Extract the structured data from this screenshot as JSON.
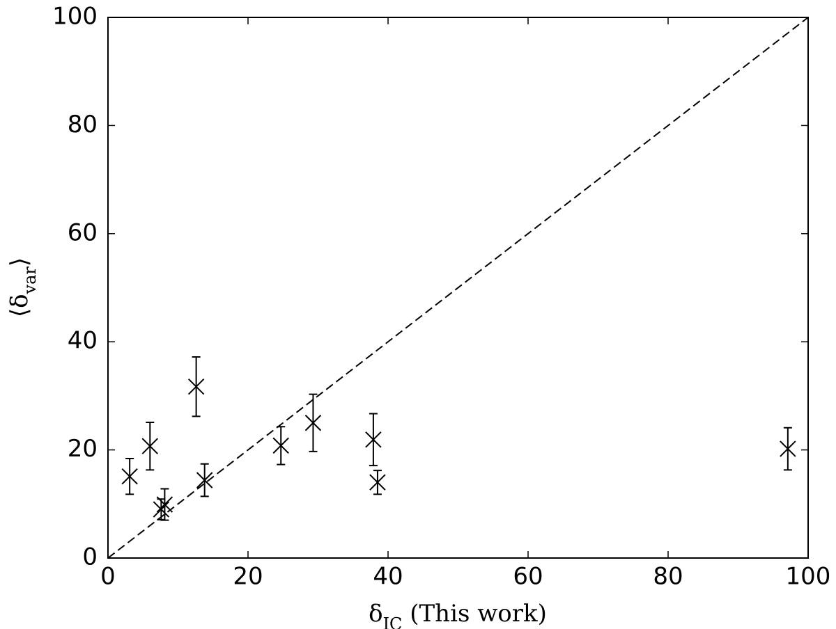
{
  "chart_data": {
    "type": "scatter",
    "xlabel": [
      "δ",
      "IC",
      " (This work)"
    ],
    "ylabel": [
      "⟨δ",
      "var",
      "⟩"
    ],
    "xlim": [
      0,
      100
    ],
    "ylim": [
      0,
      100
    ],
    "xticks": [
      0,
      20,
      40,
      60,
      80,
      100
    ],
    "yticks": [
      0,
      20,
      40,
      60,
      80,
      100
    ],
    "color": "#000000",
    "x": [
      3.1,
      6.0,
      7.6,
      8.1,
      12.6,
      13.8,
      24.7,
      29.3,
      37.9,
      38.5,
      97.1
    ],
    "values": [
      15.1,
      20.7,
      9.0,
      9.9,
      31.7,
      14.4,
      20.8,
      25.0,
      21.9,
      14.0,
      20.2
    ],
    "errors": [
      3.3,
      4.4,
      1.9,
      2.9,
      5.5,
      3.0,
      3.5,
      5.3,
      4.8,
      2.2,
      3.9
    ],
    "reference_line": {
      "x": [
        0,
        100
      ],
      "y": [
        0,
        100
      ],
      "style": "dashed"
    }
  }
}
